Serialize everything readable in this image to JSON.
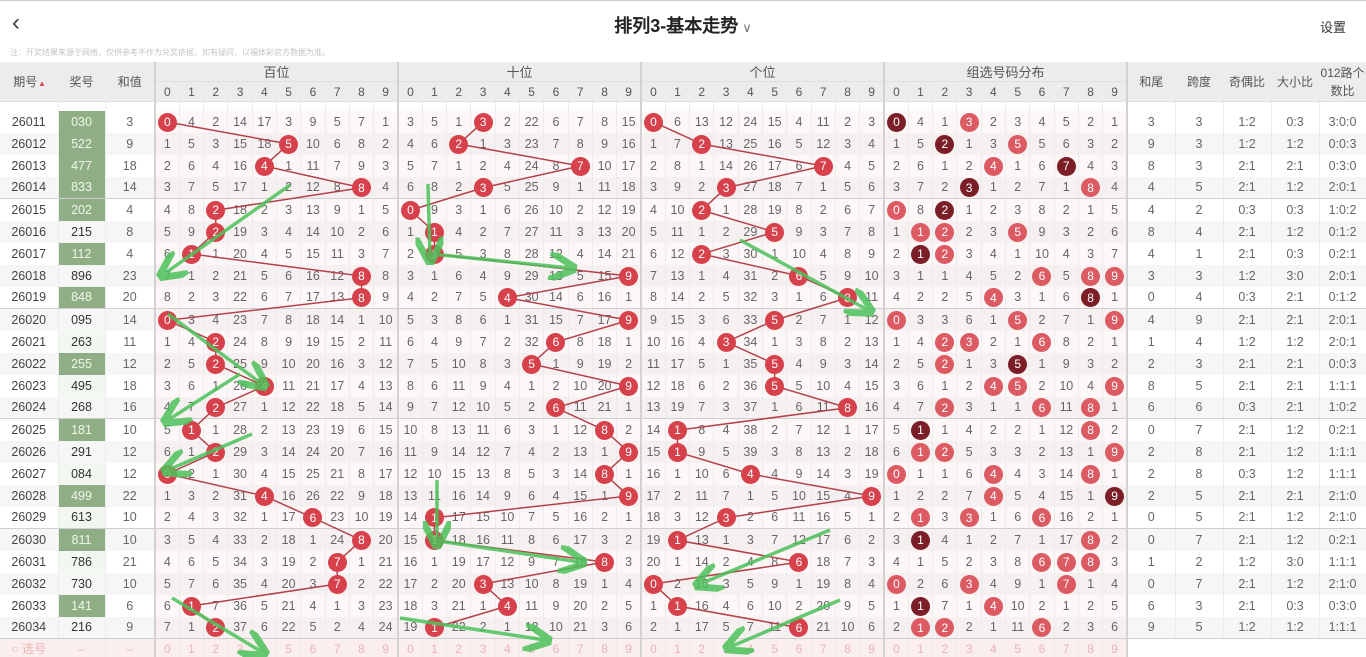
{
  "header": {
    "back_icon": "chevron-left-icon",
    "title": "排列3-基本走势",
    "dropdown_icon": "chevron-down-icon",
    "settings": "设置"
  },
  "note": "注：开奖结果来源于网络，仅供参考不作为兑奖依据，如有疑问，以福体彩官方数据为准。",
  "columns": {
    "issue": "期号",
    "sort_icon": "sort-arrow-icon",
    "number": "奖号",
    "sum": "和值",
    "hundreds": "百位",
    "tens": "十位",
    "units": "个位",
    "group": "组选号码分布",
    "sum_tail": "和尾",
    "span": "跨度",
    "odd_even": "奇偶比",
    "big_small": "大小比",
    "road012": "012路个数比"
  },
  "digits": [
    "0",
    "1",
    "2",
    "3",
    "4",
    "5",
    "6",
    "7",
    "8",
    "9"
  ],
  "first_row_omission": {
    "hundreds": [
      0,
      4,
      2,
      14,
      17,
      3,
      9,
      5,
      7,
      1
    ],
    "tens": [
      3,
      5,
      1,
      0,
      2,
      22,
      6,
      7,
      8,
      15
    ],
    "units": [
      0,
      6,
      13,
      12,
      24,
      15,
      4,
      11,
      2,
      3
    ],
    "group": [
      0,
      4,
      1,
      0,
      2,
      3,
      4,
      5,
      2,
      1
    ]
  },
  "rows": [
    {
      "issue": "26011",
      "number": "030",
      "sum": "3",
      "tail": "3",
      "span": "3",
      "oe": "1:2",
      "bs": "0:3",
      "r012": "3:0:0"
    },
    {
      "issue": "26012",
      "number": "522",
      "sum": "9",
      "tail": "9",
      "span": "3",
      "oe": "1:2",
      "bs": "1:2",
      "r012": "0:0:3"
    },
    {
      "issue": "26013",
      "number": "477",
      "sum": "18",
      "tail": "8",
      "span": "3",
      "oe": "2:1",
      "bs": "2:1",
      "r012": "0:3:0"
    },
    {
      "issue": "26014",
      "number": "833",
      "sum": "14",
      "tail": "4",
      "span": "5",
      "oe": "2:1",
      "bs": "1:2",
      "r012": "2:0:1"
    },
    {
      "issue": "26015",
      "number": "202",
      "sum": "4",
      "tail": "4",
      "span": "2",
      "oe": "0:3",
      "bs": "0:3",
      "r012": "1:0:2"
    },
    {
      "issue": "26016",
      "number": "215",
      "sum": "8",
      "tail": "8",
      "span": "4",
      "oe": "2:1",
      "bs": "1:2",
      "r012": "0:1:2"
    },
    {
      "issue": "26017",
      "number": "112",
      "sum": "4",
      "tail": "4",
      "span": "1",
      "oe": "2:1",
      "bs": "0:3",
      "r012": "0:2:1"
    },
    {
      "issue": "26018",
      "number": "896",
      "sum": "23",
      "tail": "3",
      "span": "3",
      "oe": "1:2",
      "bs": "3:0",
      "r012": "2:0:1"
    },
    {
      "issue": "26019",
      "number": "848",
      "sum": "20",
      "tail": "0",
      "span": "4",
      "oe": "0:3",
      "bs": "2:1",
      "r012": "0:1:2"
    },
    {
      "issue": "26020",
      "number": "095",
      "sum": "14",
      "tail": "4",
      "span": "9",
      "oe": "2:1",
      "bs": "2:1",
      "r012": "2:0:1"
    },
    {
      "issue": "26021",
      "number": "263",
      "sum": "11",
      "tail": "1",
      "span": "4",
      "oe": "1:2",
      "bs": "1:2",
      "r012": "2:0:1"
    },
    {
      "issue": "26022",
      "number": "255",
      "sum": "12",
      "tail": "2",
      "span": "3",
      "oe": "2:1",
      "bs": "2:1",
      "r012": "0:0:3"
    },
    {
      "issue": "26023",
      "number": "495",
      "sum": "18",
      "tail": "8",
      "span": "5",
      "oe": "2:1",
      "bs": "2:1",
      "r012": "1:1:1"
    },
    {
      "issue": "26024",
      "number": "268",
      "sum": "16",
      "tail": "6",
      "span": "6",
      "oe": "0:3",
      "bs": "2:1",
      "r012": "1:0:2"
    },
    {
      "issue": "26025",
      "number": "181",
      "sum": "10",
      "tail": "0",
      "span": "7",
      "oe": "2:1",
      "bs": "1:2",
      "r012": "0:2:1"
    },
    {
      "issue": "26026",
      "number": "291",
      "sum": "12",
      "tail": "2",
      "span": "8",
      "oe": "2:1",
      "bs": "1:2",
      "r012": "1:1:1"
    },
    {
      "issue": "26027",
      "number": "084",
      "sum": "12",
      "tail": "2",
      "span": "8",
      "oe": "0:3",
      "bs": "1:2",
      "r012": "1:1:1"
    },
    {
      "issue": "26028",
      "number": "499",
      "sum": "22",
      "tail": "2",
      "span": "5",
      "oe": "2:1",
      "bs": "2:1",
      "r012": "2:1:0"
    },
    {
      "issue": "26029",
      "number": "613",
      "sum": "10",
      "tail": "0",
      "span": "5",
      "oe": "2:1",
      "bs": "1:2",
      "r012": "2:1:0"
    },
    {
      "issue": "26030",
      "number": "811",
      "sum": "10",
      "tail": "0",
      "span": "7",
      "oe": "2:1",
      "bs": "1:2",
      "r012": "0:2:1"
    },
    {
      "issue": "26031",
      "number": "786",
      "sum": "21",
      "tail": "1",
      "span": "2",
      "oe": "1:2",
      "bs": "3:0",
      "r012": "1:1:1"
    },
    {
      "issue": "26032",
      "number": "730",
      "sum": "10",
      "tail": "0",
      "span": "7",
      "oe": "2:1",
      "bs": "1:2",
      "r012": "2:1:0"
    },
    {
      "issue": "26033",
      "number": "141",
      "sum": "6",
      "tail": "6",
      "span": "3",
      "oe": "2:1",
      "bs": "0:3",
      "r012": "0:3:0"
    },
    {
      "issue": "26034",
      "number": "216",
      "sum": "9",
      "tail": "9",
      "span": "5",
      "oe": "1:2",
      "bs": "1:2",
      "r012": "1:1:1"
    }
  ],
  "select_row": {
    "radio_icon": "radio-circle-icon",
    "label": "选号",
    "dash": "–"
  },
  "colors": {
    "hit_ball": "#d6414b",
    "repeat_ball": "#7b1e27",
    "trend_line": "#b5414a",
    "pair_number_bg": "#8fae86",
    "annotation_arrow": "#4cc25a"
  }
}
